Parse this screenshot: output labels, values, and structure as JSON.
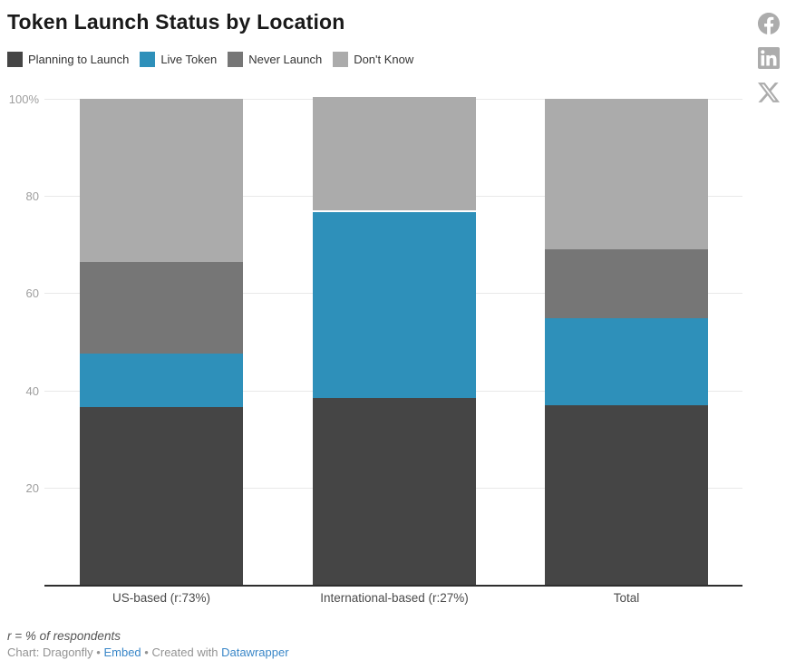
{
  "title": "Token Launch Status by Location",
  "legend": [
    {
      "label": "Planning to Launch",
      "color": "#454545"
    },
    {
      "label": "Live Token",
      "color": "#2e90ba"
    },
    {
      "label": "Never Launch",
      "color": "#767676"
    },
    {
      "label": "Don't Know",
      "color": "#ababab"
    }
  ],
  "social": {
    "icons": [
      "facebook-icon",
      "linkedin-icon",
      "x-icon"
    ],
    "color": "#acacac"
  },
  "chart_data": {
    "type": "bar",
    "stacked": true,
    "orientation": "vertical",
    "unit": "%",
    "title": "Token Launch Status by Location",
    "categories": [
      "US-based (r:73%)",
      "International-based (r:27%)",
      "Total"
    ],
    "series": [
      {
        "name": "Planning to Launch",
        "color": "#454545",
        "values": [
          36.5,
          38.4,
          37.0
        ]
      },
      {
        "name": "Live Token",
        "color": "#2e90ba",
        "values": [
          11.0,
          38.2,
          17.9
        ]
      },
      {
        "name": "Never Launch",
        "color": "#767676",
        "values": [
          19.0,
          0.0,
          14.1
        ]
      },
      {
        "name": "Don't Know",
        "color": "#ababab",
        "values": [
          33.5,
          23.4,
          31.0
        ]
      }
    ],
    "y_axis": {
      "min": 0,
      "max": 100,
      "tick_values": [
        100,
        80,
        60,
        40,
        20
      ],
      "tick_labels": [
        "100%",
        "80",
        "60",
        "40",
        "20"
      ],
      "grid": true
    },
    "legend_position": "top",
    "colors": {
      "gridline": "#e8e8e8",
      "baseline": "#2e2e2e",
      "tick_label": "#9e9e9e",
      "category_label": "#4b4b4b"
    }
  },
  "footnote": "r = % of respondents",
  "attribution": {
    "source_label": "Chart: Dragonfly",
    "separator": "•",
    "embed_link": "Embed",
    "created_with": "Created with",
    "tool_link": "Datawrapper"
  }
}
